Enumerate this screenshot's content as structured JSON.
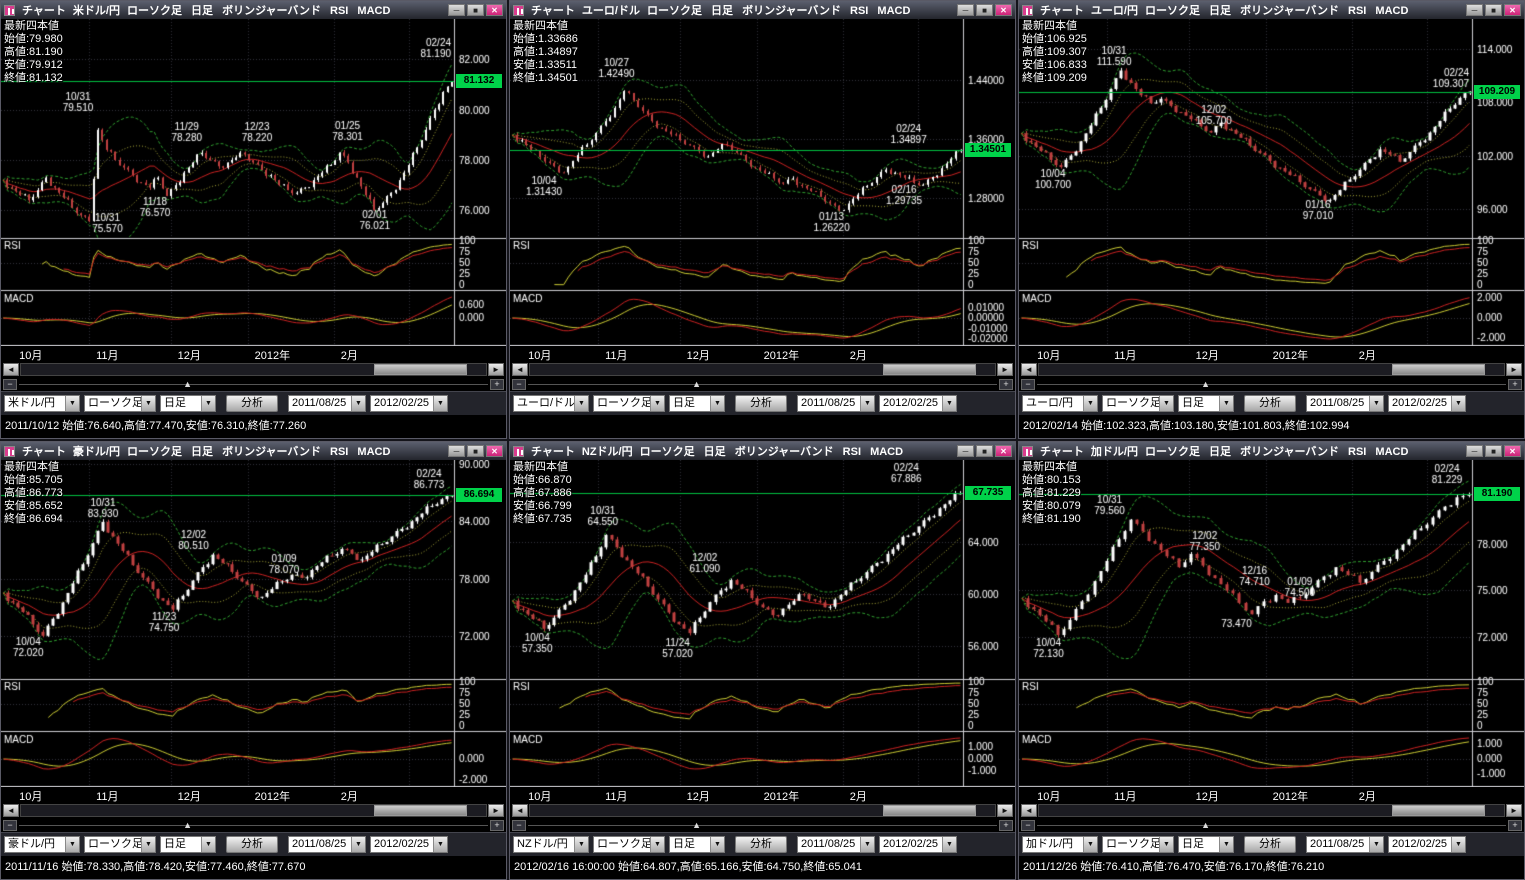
{
  "chrome": {
    "minimize_glyph": "─",
    "maximize_glyph": "■",
    "close_glyph": "✕",
    "dropdown_glyph": "▼",
    "scroll_left_glyph": "◄",
    "scroll_right_glyph": "►",
    "zoom_out_glyph": "−",
    "zoom_in_glyph": "+",
    "zoom_thumb_glyph": "▲"
  },
  "shared": {
    "app_label": "チャート",
    "title_rest": "ローソク足 日足 ボリンジャーバンド RSI MACD",
    "ohlc_header": "最新四本値",
    "rsi_label": "RSI",
    "macd_label": "MACD",
    "rsi_ticks": [
      100,
      75,
      50,
      25,
      0
    ],
    "x_months": [
      {
        "label": "10月",
        "f": 0.04
      },
      {
        "label": "11月",
        "f": 0.21
      },
      {
        "label": "12月",
        "f": 0.39
      },
      {
        "label": "2012年",
        "f": 0.56
      },
      {
        "label": "2月",
        "f": 0.75
      }
    ],
    "vlines": [
      0.195,
      0.375,
      0.545,
      0.735,
      0.9
    ],
    "candle_type_label": "ローソク足",
    "period_label": "日足",
    "analysis_label": "分析",
    "date_from": "2011/08/25",
    "date_to": "2012/02/25",
    "colors": {
      "up": "#ffffff",
      "down": "#c04040",
      "band": "#2f9e2f",
      "inner": "#a8a838",
      "mid": "#cc2222",
      "rsi1": "#cc2222",
      "rsi2": "#cccc33",
      "macd": "#cc2222",
      "signal": "#cccc33",
      "price_line": "#00c040",
      "badge_bg": "#00d24a"
    }
  },
  "panels": [
    {
      "pair": "米ドル/円",
      "ohlc": {
        "open": "始値:79.980",
        "high": "高値:81.190",
        "low": "安値:79.912",
        "close": "終値:81.132"
      },
      "badge": "81.132",
      "badge_value": 81.132,
      "y": {
        "min": 74.9,
        "max": 83.6,
        "ticks": [
          "82.000",
          "80.000",
          "78.000",
          "76.000"
        ],
        "tick_values": [
          82,
          80,
          78,
          76
        ]
      },
      "macd_ticks": [
        "0.600",
        "0.000"
      ],
      "annotations": [
        {
          "d": "02/24",
          "p": "81.190",
          "x": 0.96,
          "v": 82.45
        },
        {
          "d": "10/31",
          "p": "79.510",
          "x": 0.17,
          "v": 80.3
        },
        {
          "d": "11/29",
          "p": "78.280",
          "x": 0.41,
          "v": 79.1
        },
        {
          "d": "12/23",
          "p": "78.220",
          "x": 0.565,
          "v": 79.1
        },
        {
          "d": "01/25",
          "p": "78.301",
          "x": 0.765,
          "v": 79.15
        },
        {
          "d": "11/18",
          "p": "76.570",
          "x": 0.34,
          "v": 76.15
        },
        {
          "d": "10/31",
          "p": "75.570",
          "x": 0.235,
          "v": 75.5
        },
        {
          "d": "02/01",
          "p": "76.021",
          "x": 0.825,
          "v": 75.6
        }
      ],
      "chart_data": {
        "type": "candlestick",
        "path": [
          77.2,
          76.9,
          76.6,
          76.4,
          76.8,
          77.3,
          76.9,
          76.5,
          76.1,
          75.8,
          75.57,
          79.2,
          78.4,
          78.0,
          77.7,
          77.4,
          77.1,
          76.9,
          77.3,
          76.57,
          77.0,
          77.5,
          77.9,
          78.28,
          78.0,
          77.75,
          77.9,
          78.1,
          78.22,
          77.9,
          77.6,
          77.4,
          77.0,
          76.8,
          76.7,
          76.9,
          77.2,
          77.5,
          77.8,
          78.3,
          77.9,
          77.3,
          76.6,
          76.02,
          76.3,
          76.7,
          77.2,
          77.8,
          78.5,
          79.2,
          80.0,
          80.7,
          81.13
        ]
      },
      "status": "2011/10/12 始値:76.640,高値:77.470,安値:76.310,終値:77.260"
    },
    {
      "pair": "ユーロ/ドル",
      "ohlc": {
        "open": "始値:1.33686",
        "high": "高値:1.34897",
        "low": "安値:1.33511",
        "close": "終値:1.34501"
      },
      "badge": "1.34501",
      "badge_value": 1.34501,
      "y": {
        "min": 1.225,
        "max": 1.523,
        "ticks": [
          "1.44000",
          "1.36000",
          "1.28000"
        ],
        "tick_values": [
          1.44,
          1.36,
          1.28
        ]
      },
      "macd_ticks": [
        "0.01000",
        "0.00000",
        "-0.01000",
        "-0.02000"
      ],
      "annotations": [
        {
          "d": "10/27",
          "p": "1.42490",
          "x": 0.235,
          "v": 1.457
        },
        {
          "d": "02/24",
          "p": "1.34897",
          "x": 0.88,
          "v": 1.366
        },
        {
          "d": "10/04",
          "p": "1.31430",
          "x": 0.075,
          "v": 1.296
        },
        {
          "d": "01/13",
          "p": "1.26220",
          "x": 0.71,
          "v": 1.247
        },
        {
          "d": "02/16",
          "p": "1.29735",
          "x": 0.87,
          "v": 1.284
        }
      ],
      "chart_data": {
        "type": "candlestick",
        "path": [
          1.365,
          1.358,
          1.345,
          1.335,
          1.327,
          1.3143,
          1.322,
          1.338,
          1.352,
          1.368,
          1.384,
          1.402,
          1.4249,
          1.412,
          1.398,
          1.384,
          1.374,
          1.366,
          1.358,
          1.351,
          1.343,
          1.336,
          1.346,
          1.352,
          1.341,
          1.331,
          1.321,
          1.313,
          1.306,
          1.299,
          1.306,
          1.296,
          1.289,
          1.281,
          1.272,
          1.2622,
          1.272,
          1.284,
          1.296,
          1.308,
          1.318,
          1.314,
          1.307,
          1.3,
          1.2974,
          1.308,
          1.32,
          1.333,
          1.345
        ]
      },
      "status": ""
    },
    {
      "pair": "ユーロ/円",
      "ohlc": {
        "open": "始値:106.925",
        "high": "高値:109.307",
        "low": "安値:106.833",
        "close": "終値:109.209"
      },
      "badge": "109.209",
      "badge_value": 109.209,
      "y": {
        "min": 92.7,
        "max": 117.4,
        "ticks": [
          "114.000",
          "108.000",
          "102.000",
          "96.000"
        ],
        "tick_values": [
          114,
          108,
          102,
          96
        ]
      },
      "macd_ticks": [
        "2.000",
        "0.000",
        "-2.000"
      ],
      "annotations": [
        {
          "d": "10/31",
          "p": "111.590",
          "x": 0.21,
          "v": 113.2
        },
        {
          "d": "02/24",
          "p": "109.307",
          "x": 0.96,
          "v": 110.7
        },
        {
          "d": "12/02",
          "p": "105.700",
          "x": 0.43,
          "v": 106.6
        },
        {
          "d": "10/04",
          "p": "100.700",
          "x": 0.075,
          "v": 99.3
        },
        {
          "d": "01/16",
          "p": "97.010",
          "x": 0.66,
          "v": 95.9
        }
      ],
      "chart_data": {
        "type": "candlestick",
        "path": [
          104.5,
          103.5,
          102.5,
          101.5,
          100.7,
          102.0,
          103.6,
          105.4,
          107.4,
          109.5,
          111.59,
          110.2,
          108.8,
          107.9,
          108.4,
          107.6,
          106.9,
          106.1,
          105.3,
          104.6,
          105.7,
          104.9,
          104.0,
          103.1,
          102.3,
          101.4,
          100.6,
          99.8,
          99.0,
          98.2,
          97.5,
          97.01,
          98.1,
          99.3,
          100.4,
          101.6,
          102.7,
          102.1,
          101.3,
          102.4,
          103.5,
          104.6,
          105.9,
          107.3,
          108.5,
          109.21
        ]
      },
      "status": "2012/02/14 始値:102.323,高値:103.180,安値:101.803,終値:102.994"
    },
    {
      "pair": "豪ドル/円",
      "ohlc": {
        "open": "始値:85.705",
        "high": "高値:86.773",
        "low": "安値:85.652",
        "close": "終値:86.694"
      },
      "badge": "86.694",
      "badge_value": 86.694,
      "y": {
        "min": 67.5,
        "max": 90.4,
        "ticks": [
          "90.000",
          "84.000",
          "78.000",
          "72.000"
        ],
        "tick_values": [
          90,
          84,
          78,
          72
        ]
      },
      "macd_ticks": [
        "0.000",
        "-2.000"
      ],
      "annotations": [
        {
          "d": "02/24",
          "p": "86.773",
          "x": 0.945,
          "v": 88.4
        },
        {
          "d": "10/31",
          "p": "83.930",
          "x": 0.225,
          "v": 85.4
        },
        {
          "d": "12/02",
          "p": "80.510",
          "x": 0.425,
          "v": 82.0
        },
        {
          "d": "01/09",
          "p": "78.070",
          "x": 0.625,
          "v": 79.5
        },
        {
          "d": "11/23",
          "p": "74.750",
          "x": 0.36,
          "v": 73.5
        },
        {
          "d": "10/04",
          "p": "72.020",
          "x": 0.06,
          "v": 70.8
        }
      ],
      "chart_data": {
        "type": "candlestick",
        "path": [
          76.5,
          75.5,
          74.5,
          73.2,
          72.02,
          73.8,
          75.5,
          77.5,
          79.5,
          81.7,
          83.93,
          82.4,
          80.9,
          79.4,
          78.1,
          76.9,
          75.7,
          74.75,
          76.2,
          77.8,
          79.2,
          80.51,
          79.6,
          78.7,
          77.7,
          76.7,
          76.1,
          76.9,
          77.7,
          78.4,
          78.07,
          78.9,
          79.7,
          80.4,
          81.1,
          80.6,
          80.0,
          80.8,
          81.6,
          82.4,
          83.2,
          84.0,
          84.8,
          85.6,
          86.3,
          86.69
        ]
      },
      "status": "2011/11/16 始値:78.330,高値:78.420,安値:77.460,終値:77.670"
    },
    {
      "pair": "NZドル/円",
      "ohlc": {
        "open": "始値:66.870",
        "high": "高値:67.886",
        "low": "安値:66.799",
        "close": "終値:67.735"
      },
      "badge": "67.735",
      "badge_value": 67.735,
      "y": {
        "min": 53.5,
        "max": 70.3,
        "ticks": [
          "64.000",
          "60.000",
          "56.000"
        ],
        "tick_values": [
          64,
          60,
          56
        ]
      },
      "macd_ticks": [
        "1.000",
        "0.000",
        "-1.000"
      ],
      "annotations": [
        {
          "d": "02/24",
          "p": "67.886",
          "x": 0.875,
          "v": 69.3
        },
        {
          "d": "10/31",
          "p": "64.550",
          "x": 0.205,
          "v": 66.0
        },
        {
          "d": "12/02",
          "p": "61.090",
          "x": 0.43,
          "v": 62.4
        },
        {
          "d": "10/04",
          "p": "57.350",
          "x": 0.06,
          "v": 56.3
        },
        {
          "d": "11/24",
          "p": "57.020",
          "x": 0.37,
          "v": 55.9
        }
      ],
      "chart_data": {
        "type": "candlestick",
        "path": [
          59.5,
          58.8,
          58.1,
          57.35,
          58.2,
          59.2,
          60.3,
          61.5,
          62.9,
          64.55,
          63.6,
          62.6,
          61.6,
          60.6,
          59.6,
          58.6,
          57.7,
          57.02,
          58.2,
          59.4,
          60.3,
          61.09,
          60.4,
          59.7,
          59.0,
          58.4,
          58.9,
          59.5,
          60.0,
          59.5,
          59.0,
          59.6,
          60.3,
          61.0,
          61.7,
          62.4,
          63.1,
          63.8,
          64.5,
          65.2,
          65.9,
          66.6,
          67.2,
          67.74
        ]
      },
      "status": "2012/02/16 16:00:00 始値:64.807,高値:65.166,安値:64.750,終値:65.041"
    },
    {
      "pair": "加ドル/円",
      "ohlc": {
        "open": "始値:80.153",
        "high": "高値:81.229",
        "low": "安値:80.079",
        "close": "終値:81.190"
      },
      "badge": "81.190",
      "badge_value": 81.19,
      "y": {
        "min": 69.3,
        "max": 83.4,
        "ticks": [
          "78.000",
          "75.000",
          "72.000"
        ],
        "tick_values": [
          78,
          75,
          72
        ]
      },
      "macd_ticks": [
        "1.000",
        "0.000",
        "-1.000"
      ],
      "annotations": [
        {
          "d": "02/24",
          "p": "81.229",
          "x": 0.945,
          "v": 82.5
        },
        {
          "d": "10/31",
          "p": "79.560",
          "x": 0.2,
          "v": 80.5
        },
        {
          "d": "12/02",
          "p": "77.350",
          "x": 0.41,
          "v": 78.2
        },
        {
          "d": "12/16",
          "p": "74.710",
          "x": 0.52,
          "v": 75.9
        },
        {
          "d": "01/09",
          "p": "74.500",
          "x": 0.62,
          "v": 75.2
        },
        {
          "d": "",
          "p": "73.470",
          "x": 0.48,
          "v": 72.9
        },
        {
          "d": "10/04",
          "p": "72.130",
          "x": 0.065,
          "v": 71.3
        }
      ],
      "chart_data": {
        "type": "candlestick",
        "path": [
          74.5,
          73.8,
          73.0,
          72.13,
          73.1,
          74.3,
          75.6,
          76.9,
          78.3,
          79.56,
          78.8,
          78.0,
          77.2,
          76.5,
          77.35,
          76.6,
          75.8,
          75.0,
          74.2,
          73.47,
          74.3,
          74.71,
          74.2,
          74.5,
          75.2,
          75.9,
          76.5,
          76.0,
          75.5,
          76.2,
          76.9,
          77.6,
          78.3,
          79.0,
          79.7,
          80.4,
          81.0,
          81.19
        ]
      },
      "status": "2011/12/26 始値:76.410,高値:76.470,安値:76.170,終値:76.210"
    }
  ]
}
